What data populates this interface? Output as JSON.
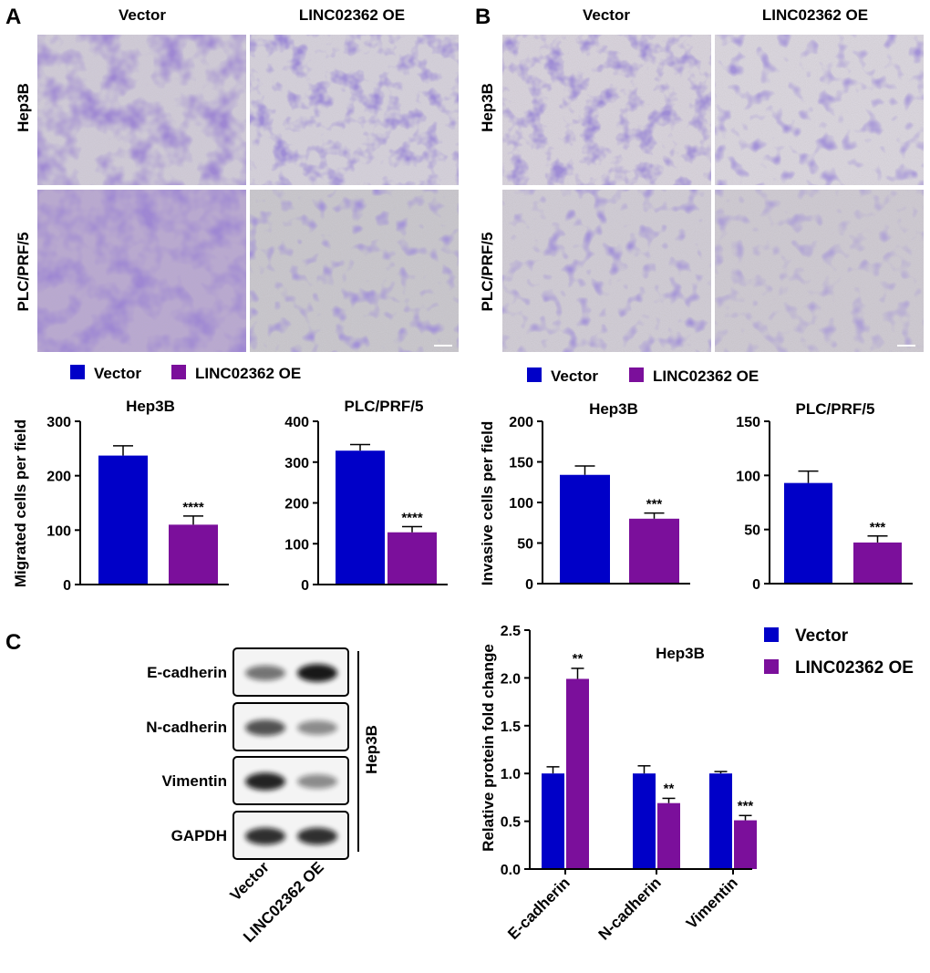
{
  "colors": {
    "vector": "#0000c8",
    "oe": "#7b0f9b",
    "stain_dense": "#5a3aa8",
    "stain_light": "#c9c3d2"
  },
  "panels": {
    "A": {
      "letter": "A",
      "col_labels": [
        "Vector",
        "LINC02362 OE"
      ],
      "row_labels": [
        "Hep3B",
        "PLC/PRF/5"
      ]
    },
    "B": {
      "letter": "B",
      "col_labels": [
        "Vector",
        "LINC02362 OE"
      ],
      "row_labels": [
        "Hep3B",
        "PLC/PRF/5"
      ]
    },
    "C": {
      "letter": "C",
      "blot_labels": [
        "E-cadherin",
        "N-cadherin",
        "Vimentin",
        "GAPDH"
      ],
      "side_label": "Hep3B",
      "lane_labels": [
        "Vector",
        "LINC02362 OE"
      ]
    }
  },
  "legend": {
    "items": [
      "Vector",
      "LINC02362 OE"
    ]
  },
  "chart_data": [
    {
      "id": "migrated_hep3b",
      "type": "bar",
      "title": "Hep3B",
      "ylabel": "Migrated cells per field",
      "categories": [
        "Vector",
        "LINC02362 OE"
      ],
      "values": [
        237,
        110
      ],
      "errors": [
        18,
        16
      ],
      "ylim": [
        0,
        300
      ],
      "yticks": [
        0,
        100,
        200,
        300
      ],
      "significance": [
        "",
        "****"
      ]
    },
    {
      "id": "migrated_plc",
      "type": "bar",
      "title": "PLC/PRF/5",
      "ylabel": "",
      "categories": [
        "Vector",
        "LINC02362 OE"
      ],
      "values": [
        328,
        128
      ],
      "errors": [
        15,
        14
      ],
      "ylim": [
        0,
        400
      ],
      "yticks": [
        0,
        100,
        200,
        300,
        400
      ],
      "significance": [
        "",
        "****"
      ]
    },
    {
      "id": "invasive_hep3b",
      "type": "bar",
      "title": "Hep3B",
      "ylabel": "Invasive cells per field",
      "categories": [
        "Vector",
        "LINC02362 OE"
      ],
      "values": [
        134,
        80
      ],
      "errors": [
        11,
        7
      ],
      "ylim": [
        0,
        200
      ],
      "yticks": [
        0,
        50,
        100,
        150,
        200
      ],
      "significance": [
        "",
        "***"
      ]
    },
    {
      "id": "invasive_plc",
      "type": "bar",
      "title": "PLC/PRF/5",
      "ylabel": "",
      "categories": [
        "Vector",
        "LINC02362 OE"
      ],
      "values": [
        93,
        38
      ],
      "errors": [
        11,
        6
      ],
      "ylim": [
        0,
        150
      ],
      "yticks": [
        0,
        50,
        100,
        150
      ],
      "significance": [
        "",
        "***"
      ]
    },
    {
      "id": "protein_hep3b",
      "type": "bar",
      "title": "Hep3B",
      "ylabel": "Relative protein fold change",
      "categories": [
        "E-cadherin",
        "N-cadherin",
        "Vimentin"
      ],
      "series": [
        {
          "name": "Vector",
          "values": [
            1.0,
            1.0,
            1.0
          ],
          "errors": [
            0.07,
            0.08,
            0.02
          ]
        },
        {
          "name": "LINC02362 OE",
          "values": [
            1.99,
            0.69,
            0.51
          ],
          "errors": [
            0.11,
            0.05,
            0.05
          ]
        }
      ],
      "ylim": [
        0,
        2.5
      ],
      "yticks": [
        "0.0",
        "0.5",
        "1.0",
        "1.5",
        "2.0",
        "2.5"
      ],
      "significance": [
        "**",
        "**",
        "***"
      ],
      "legend_position": "top-right"
    }
  ]
}
